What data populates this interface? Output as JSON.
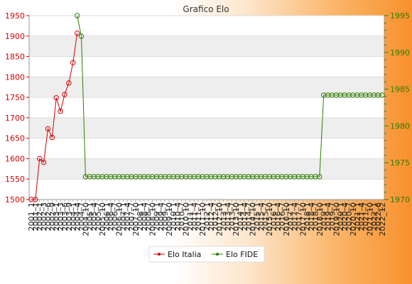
{
  "chart_data": {
    "type": "line",
    "title": "Grafico Elo",
    "legend_position": "bottom-center",
    "grid": true,
    "colors": {
      "italia": "#d40000",
      "fide": "#2e7d00"
    },
    "y_left": {
      "min": 1500,
      "max": 1950,
      "ticks": [
        1500,
        1550,
        1600,
        1650,
        1700,
        1750,
        1800,
        1850,
        1900,
        1950
      ]
    },
    "y_right": {
      "min": 1970,
      "max": 1995,
      "ticks": [
        1970,
        1975,
        1980,
        1985,
        1990,
        1995
      ]
    },
    "x_count": 85,
    "x_labels": [
      "2001_1",
      "2001_1",
      "2002_1",
      "2002_3",
      "2002_6",
      "2002_9",
      "2003_1",
      "2003_3",
      "2003_6",
      "2003_9",
      "2004_1",
      "2004_4",
      "2004_7",
      "2004_10",
      "2005_1",
      "2005_4",
      "2005_7",
      "2005_10",
      "2006_1",
      "2006_4",
      "2006_7",
      "2006_10",
      "2007_1",
      "2007_4",
      "2007_7",
      "2007_10",
      "2008_1",
      "2008_4",
      "2008_7",
      "2008_10",
      "2009_1",
      "2009_4",
      "2009_7",
      "2009_10",
      "2010_1",
      "2010_4",
      "2010_7",
      "2010_10",
      "2011_1",
      "2011_4",
      "2011_7",
      "2011_10",
      "2012_1",
      "2012_4",
      "2012_7",
      "2012_10",
      "2013_1",
      "2013_4",
      "2013_7",
      "2013_10",
      "2014_1",
      "2014_4",
      "2014_7",
      "2014_10",
      "2015_1",
      "2015_4",
      "2015_7",
      "2015_10",
      "2016_1",
      "2016_4",
      "2016_7",
      "2016_10",
      "2017_1",
      "2017_4",
      "2017_7",
      "2017_10",
      "2018_1",
      "2018_4",
      "2018_7",
      "2018_10",
      "2019_1",
      "2019_4",
      "2019_7",
      "2019_10",
      "2020_1",
      "2020_4",
      "2020_7",
      "2020_10",
      "2021_1",
      "2021_4",
      "2021_7",
      "2021_10",
      "2022_1",
      "2022_6",
      "2022_12"
    ],
    "series": [
      {
        "name": "Elo Italia",
        "axis": "left",
        "color": "#d40000",
        "start_index": 0,
        "values": [
          1500,
          1500,
          1600,
          1591,
          1673,
          1652,
          1749,
          1716,
          1757,
          1785,
          1835,
          1907
        ]
      },
      {
        "name": "Elo FIDE",
        "axis": "right",
        "color": "#2e7d00",
        "start_index": 11,
        "plateaus": [
          {
            "from": 11,
            "to": 11,
            "value": 1995
          },
          {
            "from": 12,
            "to": 12,
            "value": 1992.2
          },
          {
            "from": 13,
            "to": 69,
            "value": 1973.1
          },
          {
            "from": 70,
            "to": 84,
            "value": 1984.2
          }
        ]
      }
    ]
  }
}
